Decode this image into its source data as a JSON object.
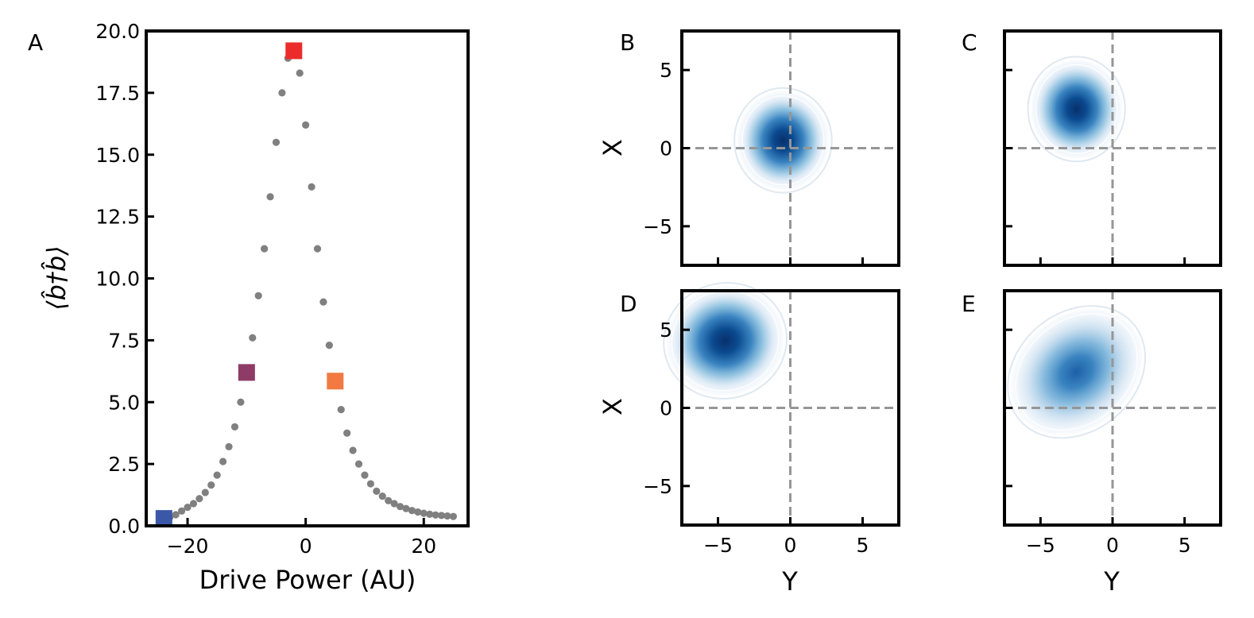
{
  "chart_data": [
    {
      "id": "A",
      "panel_label": "A",
      "type": "scatter",
      "xlabel": "Drive Power (AU)",
      "ylabel": "⟨b̂†b̂⟩",
      "xlim": [
        -27,
        27.5
      ],
      "ylim": [
        0,
        20
      ],
      "xticks": [
        -20,
        0,
        20
      ],
      "xtick_labels": [
        "−20",
        "0",
        "20"
      ],
      "yticks": [
        0,
        2.5,
        5,
        7.5,
        10,
        12.5,
        15,
        17.5,
        20
      ],
      "ytick_labels": [
        "0.0",
        "2.5",
        "5.0",
        "7.5",
        "10.0",
        "12.5",
        "15.0",
        "17.5",
        "20.0"
      ],
      "point_color": "#808080",
      "series": [
        {
          "x": [
            -24,
            -23,
            -22,
            -21,
            -20,
            -19,
            -18,
            -17,
            -16,
            -15,
            -14,
            -13,
            -12,
            -11,
            -10,
            -9,
            -8,
            -7,
            -6,
            -5,
            -4,
            -3,
            -2,
            -1,
            0,
            1,
            2,
            3,
            4,
            5,
            6,
            7,
            8,
            9,
            10,
            11,
            12,
            13,
            14,
            15,
            16,
            17,
            18,
            19,
            20,
            21,
            22,
            23,
            24,
            25
          ],
          "y": [
            0.3,
            0.35,
            0.45,
            0.6,
            0.75,
            0.9,
            1.1,
            1.35,
            1.65,
            2.05,
            2.6,
            3.2,
            4.0,
            5.0,
            6.2,
            7.6,
            9.3,
            11.2,
            13.3,
            15.5,
            17.5,
            18.9,
            19.3,
            18.3,
            16.2,
            13.7,
            11.2,
            9.05,
            7.3,
            5.8,
            4.7,
            3.75,
            3.05,
            2.5,
            2.05,
            1.7,
            1.4,
            1.2,
            1.02,
            0.9,
            0.78,
            0.7,
            0.62,
            0.56,
            0.51,
            0.47,
            0.44,
            0.42,
            0.4,
            0.38
          ]
        }
      ],
      "highlight_markers": [
        {
          "x": -24,
          "y": 0.3,
          "color": "#3a57a8",
          "state": "B"
        },
        {
          "x": -10,
          "y": 6.2,
          "color": "#8e3b67",
          "state": "D"
        },
        {
          "x": -2,
          "y": 19.2,
          "color": "#ec2b2b",
          "state": "C"
        },
        {
          "x": 5,
          "y": 5.85,
          "color": "#f27a42",
          "state": "E"
        }
      ]
    },
    {
      "id": "B",
      "panel_label": "B",
      "type": "heatmap",
      "xlabel": "",
      "ylabel": "X",
      "xlim": [
        -7.5,
        7.5
      ],
      "ylim": [
        -7.5,
        7.5
      ],
      "ticks": [
        -5,
        0,
        5
      ],
      "xtick_labels": [],
      "ytick_labels": [
        "−5",
        "0",
        "5"
      ],
      "blob": {
        "cx": -0.5,
        "cy": 0.5,
        "sx": 1.4,
        "sy": 1.4,
        "rotation": 0,
        "peak": 1.0
      }
    },
    {
      "id": "C",
      "panel_label": "C",
      "type": "heatmap",
      "xlabel": "",
      "ylabel": "",
      "xlim": [
        -7.5,
        7.5
      ],
      "ylim": [
        -7.5,
        7.5
      ],
      "ticks": [
        -5,
        0,
        5
      ],
      "xtick_labels": [],
      "ytick_labels": [],
      "blob": {
        "cx": -2.5,
        "cy": 2.5,
        "sx": 1.4,
        "sy": 1.4,
        "rotation": 0,
        "peak": 1.0
      }
    },
    {
      "id": "D",
      "panel_label": "D",
      "type": "heatmap",
      "xlabel": "Y",
      "ylabel": "X",
      "xlim": [
        -7.5,
        7.5
      ],
      "ylim": [
        -7.5,
        7.5
      ],
      "ticks": [
        -5,
        0,
        5
      ],
      "xtick_labels": [
        "−5",
        "0",
        "5"
      ],
      "ytick_labels": [
        "−5",
        "0",
        "5"
      ],
      "blob": {
        "cx": -4.5,
        "cy": 4.3,
        "sx": 1.8,
        "sy": 1.55,
        "rotation": -15,
        "peak": 0.92
      }
    },
    {
      "id": "E",
      "panel_label": "E",
      "type": "heatmap",
      "xlabel": "Y",
      "ylabel": "",
      "xlim": [
        -7.5,
        7.5
      ],
      "ylim": [
        -7.5,
        7.5
      ],
      "ticks": [
        -5,
        0,
        5
      ],
      "xtick_labels": [
        "−5",
        "0",
        "5"
      ],
      "ytick_labels": [],
      "blob": {
        "cx": -2.5,
        "cy": 2.3,
        "sx": 2.2,
        "sy": 1.6,
        "rotation": -40,
        "peak": 0.7
      }
    }
  ]
}
